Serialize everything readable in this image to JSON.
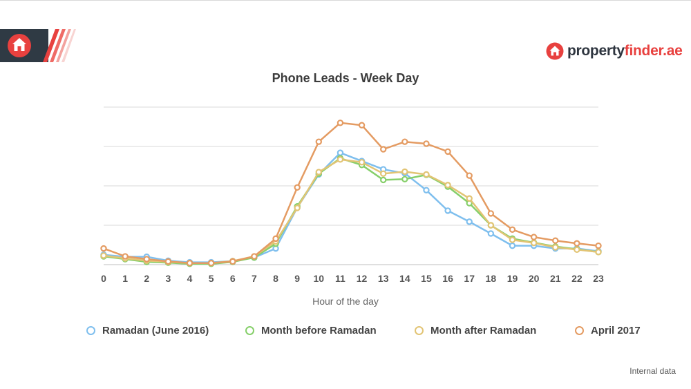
{
  "brand": {
    "name_part1": "property",
    "name_part2": "finder.ae"
  },
  "footnote": "Internal data",
  "chart_data": {
    "type": "line",
    "title": "Phone Leads - Week Day",
    "xlabel": "Hour of the day",
    "ylabel": "",
    "x": [
      0,
      1,
      2,
      3,
      4,
      5,
      6,
      7,
      8,
      9,
      10,
      11,
      12,
      13,
      14,
      15,
      16,
      17,
      18,
      19,
      20,
      21,
      22,
      23
    ],
    "ylim": [
      0,
      40
    ],
    "grid": true,
    "legend_position": "bottom",
    "series": [
      {
        "name": "Ramadan (June 2016)",
        "color": "#7fbfee",
        "values": [
          2.5,
          2.0,
          2.0,
          1.0,
          0.6,
          0.6,
          0.9,
          1.8,
          4.1,
          14.5,
          22.9,
          28.4,
          26.3,
          24.2,
          23.2,
          18.9,
          13.7,
          10.9,
          7.9,
          4.8,
          4.8,
          4.1,
          4.1,
          3.4
        ]
      },
      {
        "name": "Month before Ramadan",
        "color": "#86cf6a",
        "values": [
          2.1,
          1.4,
          0.7,
          0.5,
          0.2,
          0.2,
          0.7,
          1.8,
          5.3,
          14.8,
          23.1,
          27.0,
          25.3,
          21.5,
          21.7,
          22.8,
          19.8,
          15.6,
          10.0,
          6.6,
          5.6,
          4.6,
          3.9,
          3.2
        ]
      },
      {
        "name": "Month after Ramadan",
        "color": "#e2c474",
        "values": [
          2.3,
          1.6,
          1.0,
          0.7,
          0.4,
          0.4,
          0.9,
          2.1,
          5.9,
          14.4,
          23.5,
          26.7,
          26.0,
          23.1,
          23.6,
          22.9,
          20.2,
          16.8,
          10.0,
          6.3,
          5.5,
          4.4,
          3.8,
          3.2
        ]
      },
      {
        "name": "April 2017",
        "color": "#e49b62",
        "values": [
          4.1,
          2.1,
          1.4,
          0.8,
          0.4,
          0.4,
          0.8,
          2.1,
          6.6,
          19.6,
          31.2,
          36.0,
          35.4,
          29.3,
          31.2,
          30.7,
          28.7,
          22.6,
          13.0,
          8.9,
          7.0,
          6.1,
          5.4,
          4.8
        ]
      }
    ]
  }
}
